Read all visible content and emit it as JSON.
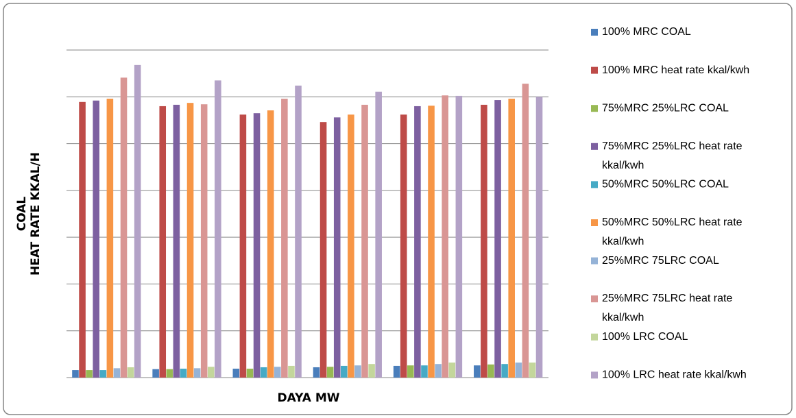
{
  "chart_data": {
    "type": "bar",
    "x_label": "DAYA MW",
    "y_label": [
      "COAL",
      "HEAT RATE KKAL/H"
    ],
    "categories": [
      null,
      null,
      null,
      null,
      null,
      null
    ],
    "ylim": [
      0,
      7
    ],
    "yticks": [
      0,
      1,
      2,
      3,
      4,
      5,
      6,
      7
    ],
    "grid": true,
    "series": [
      {
        "name": "100% MRC COAL",
        "color": "#4a7ebb",
        "values": [
          0.16,
          0.18,
          0.19,
          0.22,
          0.25,
          0.26
        ]
      },
      {
        "name": "100% MRC heat rate kkal/kwh",
        "color": "#be4b48",
        "values": [
          5.89,
          5.8,
          5.62,
          5.46,
          5.62,
          5.83
        ]
      },
      {
        "name": "75%MRC 25%LRC COAL",
        "color": "#98b954",
        "values": [
          0.16,
          0.18,
          0.19,
          0.23,
          0.26,
          0.28
        ]
      },
      {
        "name": "75%MRC 25%LRC heat rate kkal/kwh",
        "color": "#7d60a0",
        "values": [
          5.92,
          5.83,
          5.65,
          5.56,
          5.8,
          5.93
        ]
      },
      {
        "name": "50%MRC 50%LRC COAL",
        "color": "#46aac5",
        "values": [
          0.16,
          0.19,
          0.22,
          0.25,
          0.26,
          0.29
        ]
      },
      {
        "name": "50%MRC 50%LRC heat rate kkal/kwh",
        "color": "#f79646",
        "values": [
          5.96,
          5.87,
          5.71,
          5.62,
          5.81,
          5.96
        ]
      },
      {
        "name": "25%MRC 75LRC COAL",
        "color": "#95b3d7",
        "values": [
          0.2,
          0.2,
          0.23,
          0.26,
          0.29,
          0.32
        ]
      },
      {
        "name": "25%MRC 75LRC heat rate kkal/kwh",
        "color": "#d99694",
        "values": [
          6.41,
          5.84,
          5.96,
          5.83,
          6.03,
          6.28
        ]
      },
      {
        "name": "100% LRC COAL",
        "color": "#c3d69b",
        "values": [
          0.22,
          0.23,
          0.25,
          0.29,
          0.32,
          0.32
        ]
      },
      {
        "name": "100% LRC heat rate kkal/kwh",
        "color": "#b3a2c7",
        "values": [
          6.68,
          6.35,
          6.24,
          6.11,
          6.02,
          6.0
        ]
      }
    ]
  }
}
